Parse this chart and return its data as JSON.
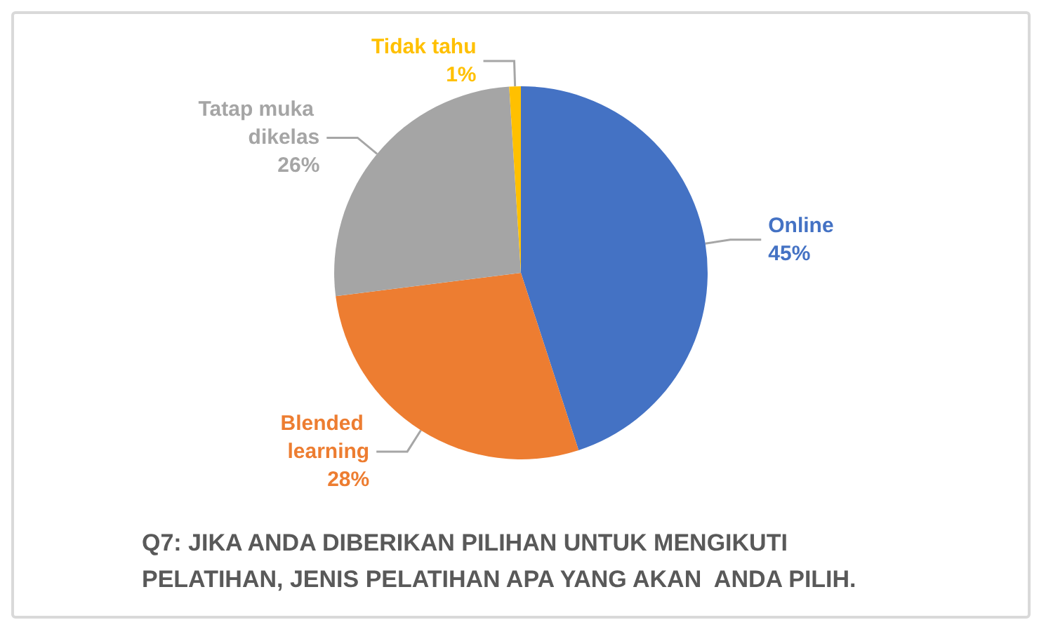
{
  "chart_data": {
    "type": "pie",
    "title": "Q7: JIKA ANDA DIBERIKAN PILIHAN UNTUK MENGIKUTI PELATIHAN, JENIS PELATIHAN APA YANG AKAN  ANDA PILIH.",
    "categories": [
      "Online",
      "Blended learning",
      "Tatap muka dikelas",
      "Tidak tahu"
    ],
    "values": [
      45,
      28,
      26,
      1
    ],
    "value_labels": [
      "45%",
      "28%",
      "26%",
      "1%"
    ],
    "colors": [
      "#4472c4",
      "#ed7d31",
      "#a5a5a5",
      "#ffc000"
    ],
    "legend": false
  }
}
